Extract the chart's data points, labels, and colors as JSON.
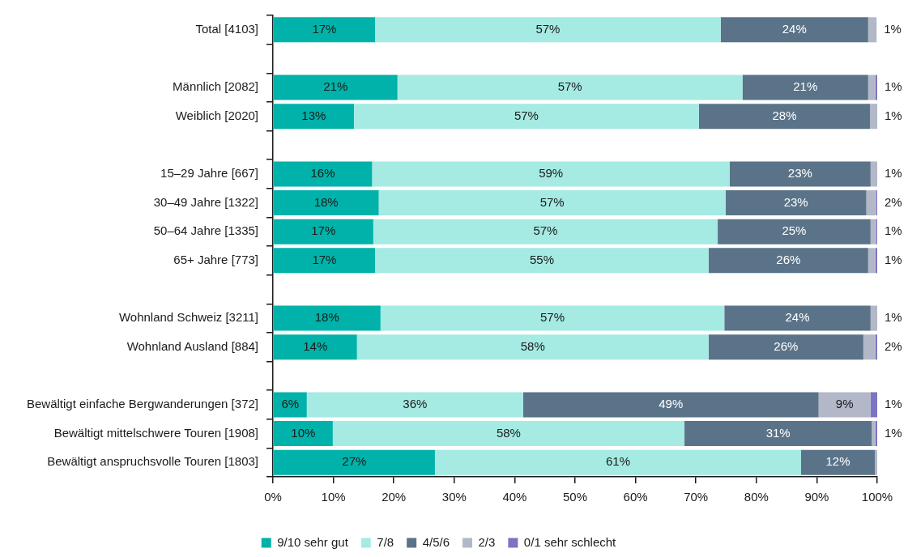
{
  "chart_data": {
    "type": "bar",
    "orientation": "horizontal",
    "stacked": true,
    "categories": [
      "Total [4103]",
      null,
      "Männlich [2082]",
      "Weiblich [2020]",
      null,
      "15–29 Jahre [667]",
      "30–49 Jahre [1322]",
      "50–64 Jahre [1335]",
      "65+ Jahre [773]",
      null,
      "Wohnland Schweiz [3211]",
      "Wohnland Ausland [884]",
      null,
      "Bewältigt einfache Bergwanderungen [372]",
      "Bewältigt mittelschwere Touren [1908]",
      "Bewältigt anspruchsvolle Touren [1803]"
    ],
    "series": [
      {
        "name": "9/10 sehr gut",
        "color": "#00b2a9",
        "values": [
          16.9,
          null,
          20.6,
          13.4,
          null,
          16.4,
          17.5,
          16.6,
          16.9,
          null,
          17.8,
          13.9,
          null,
          5.6,
          9.9,
          26.8
        ],
        "value_labels": [
          "17%",
          null,
          "21%",
          "13%",
          null,
          "16%",
          "18%",
          "17%",
          "17%",
          null,
          "18%",
          "14%",
          null,
          "6%",
          "10%",
          "27%"
        ]
      },
      {
        "name": "7/8",
        "color": "#a5eae3",
        "values": [
          57.2,
          null,
          57.1,
          57.1,
          null,
          59.2,
          57.4,
          57.0,
          55.2,
          null,
          56.9,
          58.2,
          null,
          35.8,
          58.2,
          60.6
        ],
        "value_labels": [
          "57%",
          null,
          "57%",
          "57%",
          null,
          "59%",
          "57%",
          "57%",
          "55%",
          null,
          "57%",
          "58%",
          null,
          "36%",
          "58%",
          "61%"
        ]
      },
      {
        "name": "4/5/6",
        "color": "#5a7389",
        "values": [
          24.4,
          null,
          20.8,
          28.3,
          null,
          23.3,
          23.3,
          25.3,
          26.4,
          null,
          24.2,
          25.6,
          null,
          48.9,
          31.0,
          12.2
        ],
        "value_labels": [
          "24%",
          null,
          "21%",
          "28%",
          null,
          "23%",
          "23%",
          "25%",
          "26%",
          null,
          "24%",
          "26%",
          null,
          "49%",
          "31%",
          "12%"
        ]
      },
      {
        "name": "2/3",
        "color": "#b2b8c8",
        "values": [
          1.4,
          null,
          1.2,
          1.2,
          null,
          1.1,
          1.6,
          0.9,
          1.2,
          null,
          1.1,
          2.0,
          null,
          8.6,
          0.6,
          0.4
        ],
        "value_labels": [
          "1%",
          null,
          "1%",
          "1%",
          null,
          "1%",
          "2%",
          "1%",
          "1%",
          null,
          "1%",
          "2%",
          null,
          "9%",
          "1%",
          null
        ]
      },
      {
        "name": "0/1 sehr schlecht",
        "color": "#7b74c4",
        "values": [
          null,
          null,
          0.3,
          null,
          null,
          null,
          0.2,
          0.2,
          0.3,
          null,
          null,
          0.3,
          null,
          1.1,
          0.3,
          null
        ],
        "value_labels": [
          null,
          null,
          null,
          null,
          null,
          null,
          null,
          null,
          null,
          null,
          null,
          null,
          null,
          "1%",
          null,
          null
        ]
      }
    ],
    "xlim": [
      0,
      100
    ],
    "xticks": [
      {
        "value": 0,
        "label": "0%"
      },
      {
        "value": 10,
        "label": "10%"
      },
      {
        "value": 20,
        "label": "20%"
      },
      {
        "value": 30,
        "label": "30%"
      },
      {
        "value": 40,
        "label": "40%"
      },
      {
        "value": 50,
        "label": "50%"
      },
      {
        "value": 60,
        "label": "60%"
      },
      {
        "value": 70,
        "label": "70%"
      },
      {
        "value": 80,
        "label": "80%"
      },
      {
        "value": 90,
        "label": "90%"
      },
      {
        "value": 100,
        "label": "100%"
      }
    ],
    "grid": false,
    "legend": "bottom"
  }
}
